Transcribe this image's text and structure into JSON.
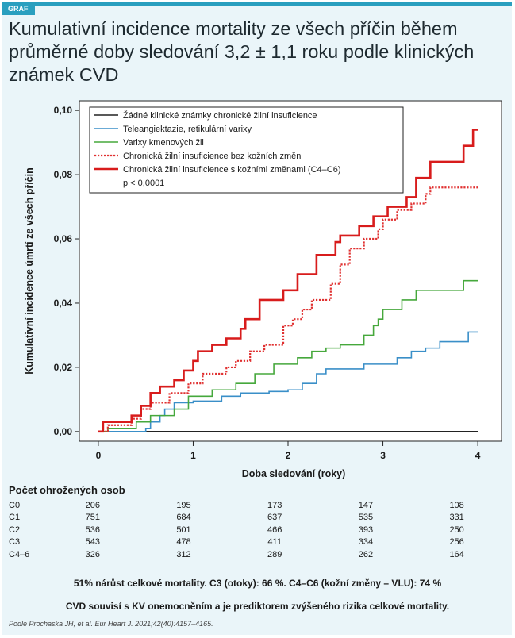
{
  "badge": "GRAF",
  "title": "Kumulativní incidence mortality ze všech příčin během průměrné doby sledování 3,2 ± 1,1 roku podle klinických známek CVD",
  "chart_data": {
    "type": "line",
    "xlabel": "Doba sledování (roky)",
    "ylabel": "Kumulativní incidence úmrtí ze všech příčin",
    "xlim": [
      -0.2,
      4.25
    ],
    "ylim": [
      -0.003,
      0.103
    ],
    "xticks": [
      0,
      1,
      2,
      3,
      4
    ],
    "xtick_labels": [
      "0",
      "1",
      "2",
      "3",
      "4"
    ],
    "yticks": [
      0.0,
      0.02,
      0.04,
      0.06,
      0.08,
      0.1
    ],
    "ytick_labels": [
      "0,00",
      "0,02",
      "0,04",
      "0,06",
      "0,08",
      "0,10"
    ],
    "grid": false,
    "legend_position": "top-left",
    "annotation": "p < 0,0001",
    "series": [
      {
        "name": "Žádné klinické známky chronické žilní insuficience",
        "color": "#222222",
        "style": "solid",
        "width": 1.6,
        "x": [
          0,
          4
        ],
        "y": [
          0,
          0
        ]
      },
      {
        "name": "Teleangiektazie, retikulární varixy",
        "color": "#3a8fc8",
        "style": "solid",
        "width": 1.6,
        "x": [
          0,
          0.5,
          0.55,
          0.65,
          0.7,
          0.8,
          1.0,
          1.3,
          1.5,
          1.8,
          2.0,
          2.15,
          2.3,
          2.4,
          2.65,
          2.8,
          3.15,
          3.3,
          3.45,
          3.6,
          3.9,
          4.0
        ],
        "y": [
          0,
          0.001,
          0.003,
          0.005,
          0.007,
          0.009,
          0.0095,
          0.011,
          0.012,
          0.0125,
          0.013,
          0.015,
          0.018,
          0.0195,
          0.0195,
          0.021,
          0.023,
          0.025,
          0.026,
          0.028,
          0.031,
          0.031
        ]
      },
      {
        "name": "Varixy kmenových žil",
        "color": "#46a83c",
        "style": "solid",
        "width": 1.6,
        "x": [
          0,
          0.1,
          0.4,
          0.55,
          0.8,
          0.95,
          1.2,
          1.45,
          1.65,
          1.85,
          2.1,
          2.25,
          2.4,
          2.55,
          2.8,
          2.9,
          2.95,
          3.0,
          3.2,
          3.35,
          3.6,
          3.85,
          4.0
        ],
        "y": [
          0,
          0.001,
          0.003,
          0.005,
          0.007,
          0.011,
          0.013,
          0.015,
          0.018,
          0.021,
          0.023,
          0.025,
          0.026,
          0.027,
          0.03,
          0.033,
          0.035,
          0.038,
          0.041,
          0.044,
          0.044,
          0.047,
          0.047
        ]
      },
      {
        "name": "Chronická žilní insuficience bez kožních změn",
        "color": "#e03030",
        "style": "dotted",
        "width": 2.2,
        "x": [
          0,
          0.1,
          0.35,
          0.45,
          0.55,
          0.75,
          0.95,
          1.1,
          1.35,
          1.45,
          1.6,
          1.75,
          1.95,
          2.05,
          2.15,
          2.25,
          2.45,
          2.55,
          2.65,
          2.8,
          2.95,
          3.0,
          3.15,
          3.3,
          3.45,
          3.5,
          4.0
        ],
        "y": [
          0,
          0.002,
          0.004,
          0.007,
          0.009,
          0.012,
          0.015,
          0.018,
          0.02,
          0.022,
          0.025,
          0.027,
          0.033,
          0.035,
          0.038,
          0.041,
          0.046,
          0.052,
          0.057,
          0.06,
          0.063,
          0.066,
          0.069,
          0.071,
          0.074,
          0.076,
          0.076
        ]
      },
      {
        "name": "Chronická žilní insuficience s kožními změnami (C4–C6)",
        "color": "#d81c1c",
        "style": "solid",
        "width": 2.6,
        "x": [
          0,
          0.05,
          0.35,
          0.45,
          0.55,
          0.65,
          0.8,
          0.9,
          1.0,
          1.05,
          1.2,
          1.35,
          1.5,
          1.55,
          1.7,
          1.95,
          2.1,
          2.3,
          2.5,
          2.55,
          2.65,
          2.75,
          2.9,
          3.05,
          3.25,
          3.35,
          3.5,
          3.65,
          3.85,
          3.95,
          4.0
        ],
        "y": [
          0,
          0.003,
          0.005,
          0.008,
          0.012,
          0.014,
          0.016,
          0.019,
          0.022,
          0.025,
          0.027,
          0.029,
          0.032,
          0.035,
          0.041,
          0.044,
          0.049,
          0.055,
          0.059,
          0.061,
          0.061,
          0.064,
          0.067,
          0.07,
          0.073,
          0.079,
          0.084,
          0.084,
          0.089,
          0.094,
          0.094
        ]
      }
    ]
  },
  "risk": {
    "title": "Počet ohrožených osob",
    "rows": [
      {
        "group": "C0",
        "values": [
          "206",
          "195",
          "173",
          "147",
          "108"
        ]
      },
      {
        "group": "C1",
        "values": [
          "751",
          "684",
          "637",
          "535",
          "331"
        ]
      },
      {
        "group": "C2",
        "values": [
          "536",
          "501",
          "466",
          "393",
          "250"
        ]
      },
      {
        "group": "C3",
        "values": [
          "543",
          "478",
          "411",
          "334",
          "256"
        ]
      },
      {
        "group": "C4–6",
        "values": [
          "326",
          "312",
          "289",
          "262",
          "164"
        ]
      }
    ]
  },
  "note1": "51% nárůst celkové mortality. C3 (otoky): 66 %. C4–C6 (kožní změny – VLU): 74 %",
  "note2": "CVD souvisí s KV onemocněním a je prediktorem zvýšeného rizika celkové mortality.",
  "source": "Podle Prochaska JH, et al. Eur Heart J. 2021;42(40):4157–4165."
}
